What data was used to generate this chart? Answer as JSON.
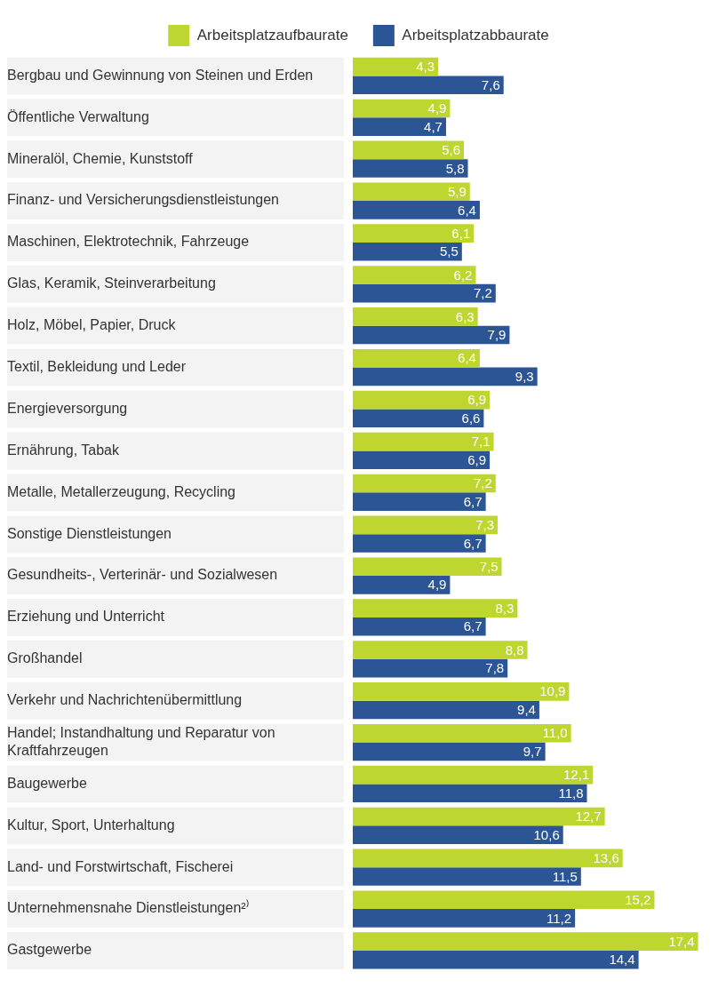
{
  "chart_data": {
    "type": "bar",
    "orientation": "horizontal",
    "legend": "top",
    "tick_labels": "y",
    "categories": [
      "Bergbau und Gewinnung von Steinen und Erden",
      "Öffentliche Verwaltung",
      "Mineralöl, Chemie, Kunststoff",
      "Finanz- und Versicherungsdienstleistungen",
      "Maschinen, Elektrotechnik, Fahrzeuge",
      "Glas, Keramik, Steinverarbeitung",
      "Holz, Möbel, Papier, Druck",
      "Textil, Bekleidung und Leder",
      "Energieversorgung",
      "Ernährung, Tabak",
      "Metalle, Metallerzeugung, Recycling",
      "Sonstige Dienstleistungen",
      "Gesundheits-, Verterinär- und Sozialwesen",
      "Erziehung und Unterricht",
      "Großhandel",
      "Verkehr und Nachrichtenübermittlung",
      "Handel; Instandhaltung und Reparatur von Kraftfahrzeugen",
      "Baugewerbe",
      "Kultur, Sport, Unterhaltung",
      "Land- und Forstwirtschaft, Fischerei",
      "Unternehmensnahe Dienstleistungen²⁾",
      "Gastgewerbe"
    ],
    "series": [
      {
        "name": "Arbeitsplatzaufbaurate",
        "color": "#bed62f",
        "values": [
          4.3,
          4.9,
          5.6,
          5.9,
          6.1,
          6.2,
          6.3,
          6.4,
          6.9,
          7.1,
          7.2,
          7.3,
          7.5,
          8.3,
          8.8,
          10.9,
          11.0,
          12.1,
          12.7,
          13.6,
          15.2,
          17.4
        ],
        "value_labels": [
          "4,3",
          "4,9",
          "5,6",
          "5,9",
          "6,1",
          "6,2",
          "6,3",
          "6,4",
          "6,9",
          "7,1",
          "7,2",
          "7,3",
          "7,5",
          "8,3",
          "8,8",
          "10,9",
          "11,0",
          "12,1",
          "12,7",
          "13,6",
          "15,2",
          "17,4"
        ]
      },
      {
        "name": "Arbeitsplatzabbaurate",
        "color": "#2b5594",
        "values": [
          7.6,
          4.7,
          5.8,
          6.4,
          5.5,
          7.2,
          7.9,
          9.3,
          6.6,
          6.9,
          6.7,
          6.7,
          4.9,
          6.7,
          7.8,
          9.4,
          9.7,
          11.8,
          10.6,
          11.5,
          11.2,
          14.4
        ],
        "value_labels": [
          "7,6",
          "4,7",
          "5,8",
          "6,4",
          "5,5",
          "7,2",
          "7,9",
          "9,3",
          "6,6",
          "6,9",
          "6,7",
          "6,7",
          "4,9",
          "6,7",
          "7,8",
          "9,4",
          "9,7",
          "11,8",
          "10,6",
          "11,5",
          "11,2",
          "14,4"
        ]
      }
    ]
  }
}
